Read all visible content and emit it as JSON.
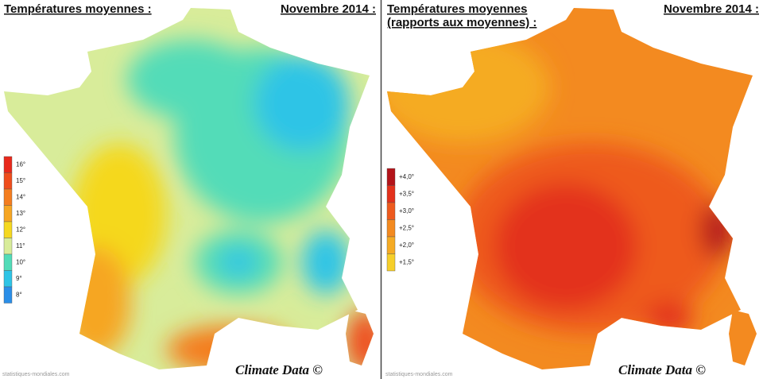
{
  "panels": [
    {
      "title_lines": [
        "Températures moyennes :"
      ],
      "date": "Novembre 2014 :",
      "legend": [
        {
          "label": "16°",
          "color": "#e8291c"
        },
        {
          "label": "15°",
          "color": "#ef4d1c"
        },
        {
          "label": "14°",
          "color": "#f47d1f"
        },
        {
          "label": "13°",
          "color": "#f6a623"
        },
        {
          "label": "12°",
          "color": "#f5d81f"
        },
        {
          "label": "11°",
          "color": "#d8ec9a"
        },
        {
          "label": "10°",
          "color": "#52dcb8"
        },
        {
          "label": "9°",
          "color": "#2ec4e6"
        },
        {
          "label": "8°",
          "color": "#2a8ee8"
        }
      ],
      "source": "statistiques-mondiales.com",
      "credit": "Climate Data ©"
    },
    {
      "title_lines": [
        "Températures moyennes",
        "(rapports aux moyennes) :"
      ],
      "date": "Novembre 2014 :",
      "legend": [
        {
          "label": "+4,0°",
          "color": "#b3141a"
        },
        {
          "label": "+3,5°",
          "color": "#e3311c"
        },
        {
          "label": "+3,0°",
          "color": "#ee5a1e"
        },
        {
          "label": "+2,5°",
          "color": "#f38a20"
        },
        {
          "label": "+2,0°",
          "color": "#f5ab24"
        },
        {
          "label": "+1,5°",
          "color": "#f6cf2a"
        }
      ],
      "source": "statistiques-mondiales.com",
      "credit": "Climate Data ©"
    }
  ]
}
